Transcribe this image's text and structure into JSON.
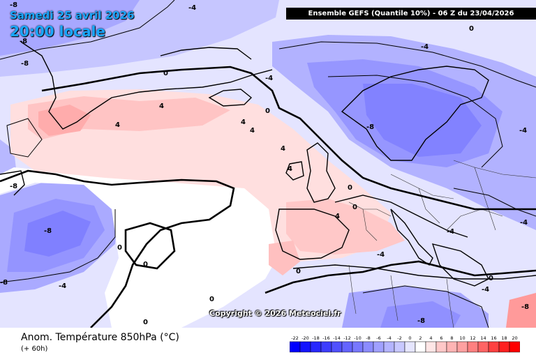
{
  "header": {
    "date": "Samedi 25 avril 2026",
    "time": "20:00 locale",
    "banner": "Ensemble GEFS  (Quantile 10%) - 06 Z du 23/04/2026"
  },
  "footer": {
    "field": "Anom. Température 850hPa (°C)",
    "lead": "(+ 60h)",
    "copyright": "Copyright © 2026 Meteociel.fr"
  },
  "legend": {
    "ticks": [
      "-22",
      "-20",
      "-18",
      "-16",
      "-14",
      "-12",
      "-10",
      "-8",
      "-6",
      "-4",
      "-2",
      "0",
      "2",
      "4",
      "6",
      "8",
      "10",
      "12",
      "14",
      "16",
      "18",
      "20"
    ],
    "colors": [
      "#0000ff",
      "#1414ff",
      "#2828ff",
      "#3c3cff",
      "#5050ff",
      "#6464ff",
      "#7878ff",
      "#8c8cff",
      "#a0a0ff",
      "#b4b4ff",
      "#c8c8ff",
      "#e6e6ff",
      "#ffffff",
      "#ffe6e6",
      "#ffc8c8",
      "#ffb4b4",
      "#ffa0a0",
      "#ff8080",
      "#ff6464",
      "#ff4040",
      "#ff2020",
      "#ff0000"
    ]
  },
  "map": {
    "contour_labels": [
      "-8",
      "-4",
      "-8",
      "-8",
      "0",
      "-4",
      "4",
      "4",
      "0",
      "4",
      "4",
      "-4",
      "0",
      "-8",
      "-4",
      "-8",
      "-8",
      "-4",
      "0",
      "0",
      "4",
      "4",
      "0",
      "4",
      "0",
      "-4",
      "-8",
      "-8",
      "0",
      "-4",
      "-4",
      "0",
      "0",
      "0",
      "-4",
      "-8"
    ]
  }
}
